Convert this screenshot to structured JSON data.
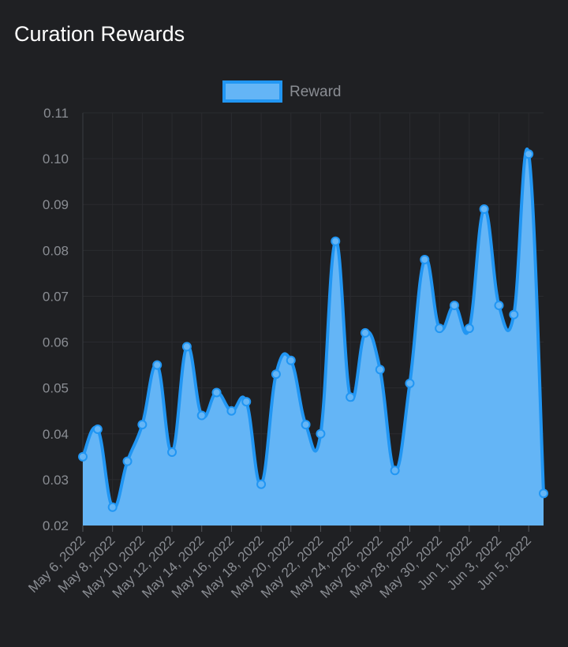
{
  "page": {
    "title": "Curation Rewards"
  },
  "colors": {
    "background": "#1f2023",
    "line": "#2196f3",
    "fill": "#64b5f6",
    "grid": "#2a2b2f",
    "text": "#8a8d93"
  },
  "chart_data": {
    "type": "area",
    "title": "Curation Rewards",
    "xlabel": "",
    "ylabel": "",
    "ylim": [
      0.02,
      0.11
    ],
    "yticks": [
      "0.11",
      "0.10",
      "0.09",
      "0.08",
      "0.07",
      "0.06",
      "0.05",
      "0.04",
      "0.03",
      "0.02"
    ],
    "legend": {
      "position": "top-center",
      "entries": [
        "Reward"
      ]
    },
    "grid": true,
    "x_tick_labels": [
      "May 6, 2022",
      "May 8, 2022",
      "May 10, 2022",
      "May 12, 2022",
      "May 14, 2022",
      "May 16, 2022",
      "May 18, 2022",
      "May 20, 2022",
      "May 22, 2022",
      "May 24, 2022",
      "May 26, 2022",
      "May 28, 2022",
      "May 30, 2022",
      "Jun 1, 2022",
      "Jun 3, 2022",
      "Jun 5, 2022"
    ],
    "series": [
      {
        "name": "Reward",
        "values": [
          0.035,
          0.041,
          0.024,
          0.034,
          0.042,
          0.055,
          0.036,
          0.059,
          0.044,
          0.049,
          0.045,
          0.047,
          0.029,
          0.053,
          0.056,
          0.042,
          0.04,
          0.082,
          0.048,
          0.062,
          0.054,
          0.032,
          0.051,
          0.078,
          0.063,
          0.068,
          0.063,
          0.089,
          0.068,
          0.066,
          0.101,
          0.027
        ]
      }
    ]
  }
}
